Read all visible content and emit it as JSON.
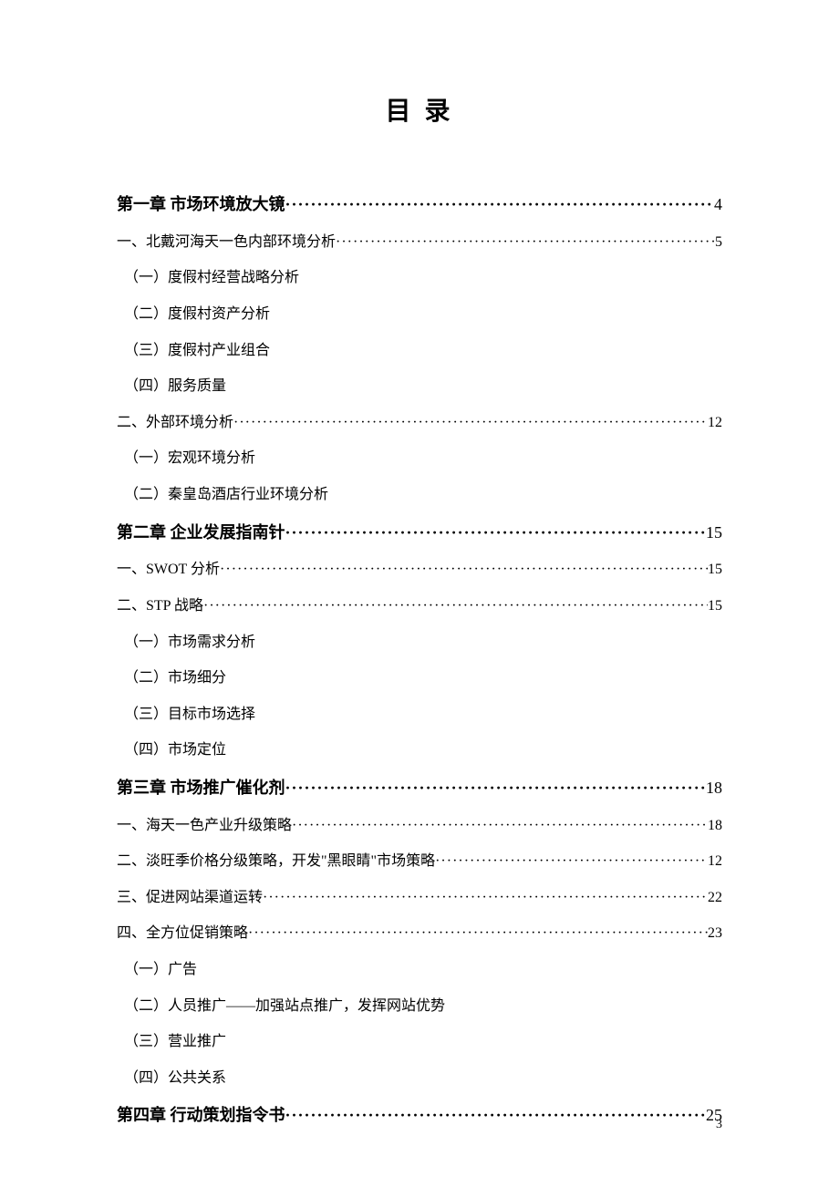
{
  "title": "目 录",
  "entries": [
    {
      "type": "chapter",
      "label": "第一章  市场环境放大镜",
      "page": "4"
    },
    {
      "type": "section",
      "label": "一、北戴河海天一色内部环境分析",
      "page": "5"
    },
    {
      "type": "sub",
      "label": "（一）度假村经营战略分析"
    },
    {
      "type": "sub",
      "label": "（二）度假村资产分析"
    },
    {
      "type": "sub",
      "label": "（三）度假村产业组合"
    },
    {
      "type": "sub",
      "label": "（四）服务质量"
    },
    {
      "type": "section",
      "label": "二、外部环境分析",
      "page": "12"
    },
    {
      "type": "sub",
      "label": "（一）宏观环境分析"
    },
    {
      "type": "sub",
      "label": "（二）秦皇岛酒店行业环境分析"
    },
    {
      "type": "chapter",
      "label": "第二章  企业发展指南针",
      "page": "15"
    },
    {
      "type": "section",
      "label": "一、SWOT 分析",
      "page": "15"
    },
    {
      "type": "section",
      "label": "二、STP 战略 ",
      "page": "15"
    },
    {
      "type": "sub",
      "label": "（一）市场需求分析"
    },
    {
      "type": "sub",
      "label": "（二）市场细分"
    },
    {
      "type": "sub",
      "label": "（三）目标市场选择"
    },
    {
      "type": "sub",
      "label": "（四）市场定位"
    },
    {
      "type": "chapter",
      "label": "第三章  市场推广催化剂",
      "page": "18"
    },
    {
      "type": "section",
      "label": "一、海天一色产业升级策略",
      "page": "18"
    },
    {
      "type": "section",
      "label": "二、淡旺季价格分级策略，开发\"黑眼睛\"市场策略",
      "page": "12"
    },
    {
      "type": "section",
      "label": "三、促进网站渠道运转",
      "page": "22"
    },
    {
      "type": "section",
      "label": "四、全方位促销策略",
      "page": "23"
    },
    {
      "type": "sub",
      "label": "（一）广告"
    },
    {
      "type": "sub",
      "label": "（二）人员推广——加强站点推广，发挥网站优势"
    },
    {
      "type": "sub",
      "label": "（三）营业推广"
    },
    {
      "type": "sub",
      "label": "（四）公共关系"
    },
    {
      "type": "chapter",
      "label": "第四章  行动策划指令书",
      "page": "25"
    }
  ],
  "page_number": "3",
  "colors": {
    "background": "#ffffff",
    "text": "#000000"
  },
  "fonts": {
    "body_family": "SimSun",
    "title_size": 28,
    "chapter_size": 18,
    "section_size": 16
  }
}
